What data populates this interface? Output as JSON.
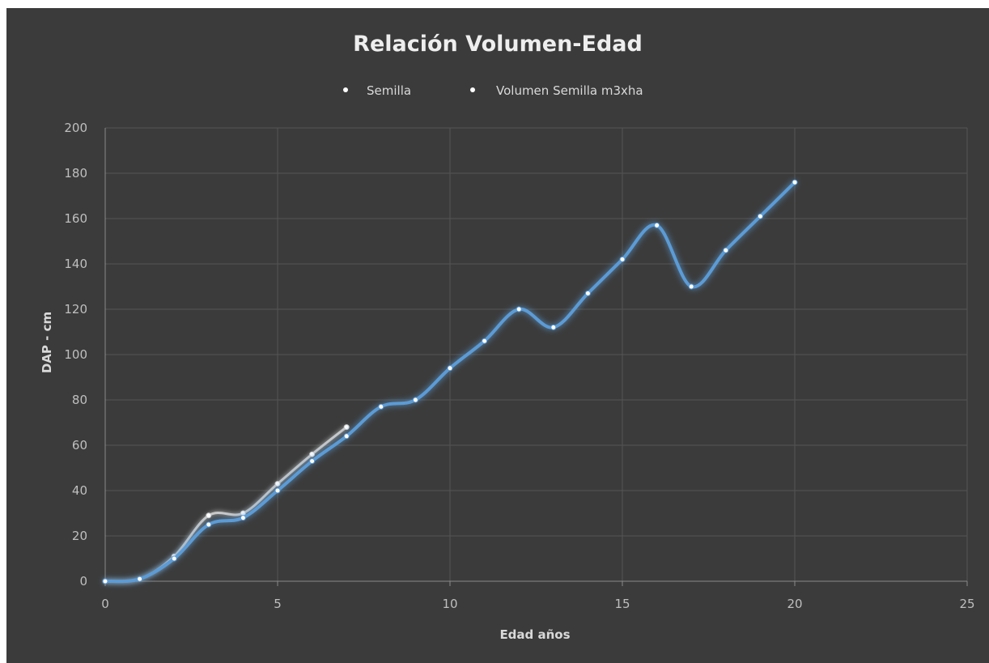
{
  "chart_data": {
    "type": "line",
    "title": "Relación Volumen-Edad",
    "xlabel": "Edad años",
    "ylabel": "DAP - cm",
    "xlim": [
      0,
      25
    ],
    "ylim": [
      0,
      200
    ],
    "x_ticks": [
      "0",
      "5",
      "10",
      "15",
      "20",
      "25"
    ],
    "y_ticks": [
      "0",
      "20",
      "40",
      "60",
      "80",
      "100",
      "120",
      "140",
      "160",
      "180",
      "200"
    ],
    "grid": true,
    "legend_position": "top",
    "smooth": true,
    "background_color": "#3b3b3b",
    "series": [
      {
        "name": "Semilla",
        "color": "#5b9bd5",
        "x": [
          0,
          1,
          2,
          3,
          4,
          5,
          6,
          7,
          8,
          9,
          10,
          11,
          12,
          13,
          14,
          15,
          16,
          17,
          18,
          19,
          20
        ],
        "values": [
          0,
          1,
          10,
          25,
          28,
          40,
          53,
          64,
          77,
          80,
          94,
          106,
          120,
          112,
          127,
          142,
          157,
          130,
          146,
          161,
          176
        ]
      },
      {
        "name": "Volumen Semilla m3xha",
        "color": "#c9c9c9",
        "x": [
          0,
          1,
          2,
          3,
          4,
          5,
          6,
          7
        ],
        "values": [
          0,
          1,
          11,
          29,
          30,
          43,
          56,
          68
        ]
      }
    ]
  }
}
